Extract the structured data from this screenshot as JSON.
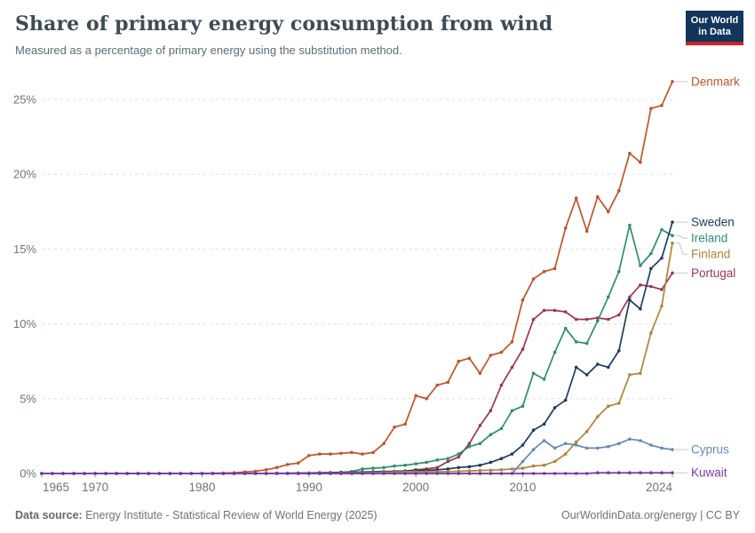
{
  "header": {
    "title": "Share of primary energy consumption from wind",
    "subtitle": "Measured as a percentage of primary energy using the substitution method."
  },
  "logo": {
    "line1": "Our World",
    "line2": "in Data",
    "bg_color": "#12355B",
    "accent_color": "#CA2428"
  },
  "footer": {
    "source_label": "Data source:",
    "source_text": " Energy Institute - Statistical Review of World Energy (2025)",
    "credit": "OurWorldinData.org/energy | CC BY"
  },
  "chart_data": {
    "type": "line",
    "title": "Share of primary energy consumption from wind",
    "xlabel": "",
    "ylabel": "",
    "unit": "%",
    "grid": "horizontal dashed",
    "legend_position": "right edge labels",
    "ylim": [
      0,
      26.5
    ],
    "yticks": [
      0,
      5,
      10,
      15,
      20,
      25
    ],
    "ytick_labels": [
      "0%",
      "5%",
      "10%",
      "15%",
      "20%",
      "25%"
    ],
    "xticks": [
      1965,
      1970,
      1980,
      1990,
      2000,
      2010,
      2024
    ],
    "x": [
      1965,
      1966,
      1967,
      1968,
      1969,
      1970,
      1971,
      1972,
      1973,
      1974,
      1975,
      1976,
      1977,
      1978,
      1979,
      1980,
      1981,
      1982,
      1983,
      1984,
      1985,
      1986,
      1987,
      1988,
      1989,
      1990,
      1991,
      1992,
      1993,
      1994,
      1995,
      1996,
      1997,
      1998,
      1999,
      2000,
      2001,
      2002,
      2003,
      2004,
      2005,
      2006,
      2007,
      2008,
      2009,
      2010,
      2011,
      2012,
      2013,
      2014,
      2015,
      2016,
      2017,
      2018,
      2019,
      2020,
      2021,
      2022,
      2023,
      2024
    ],
    "series": [
      {
        "name": "Denmark",
        "color": "#C0532B",
        "values": [
          0,
          0,
          0,
          0,
          0,
          0,
          0,
          0,
          0,
          0,
          0,
          0,
          0,
          0,
          0,
          0.01,
          0.02,
          0.03,
          0.05,
          0.1,
          0.15,
          0.25,
          0.4,
          0.6,
          0.7,
          1.2,
          1.3,
          1.3,
          1.35,
          1.4,
          1.3,
          1.4,
          2.0,
          3.1,
          3.3,
          5.2,
          5.0,
          5.9,
          6.1,
          7.5,
          7.7,
          6.7,
          7.9,
          8.1,
          8.8,
          11.6,
          13.0,
          13.5,
          13.7,
          16.4,
          18.4,
          16.2,
          18.5,
          17.5,
          18.9,
          21.4,
          20.8,
          24.4,
          24.6,
          26.2
        ]
      },
      {
        "name": "Sweden",
        "color": "#1D3D63",
        "values": [
          0,
          0,
          0,
          0,
          0,
          0,
          0,
          0,
          0,
          0,
          0,
          0,
          0,
          0,
          0,
          0,
          0,
          0,
          0,
          0,
          0.01,
          0.01,
          0.02,
          0.02,
          0.03,
          0.03,
          0.05,
          0.06,
          0.08,
          0.09,
          0.1,
          0.12,
          0.13,
          0.15,
          0.17,
          0.2,
          0.2,
          0.25,
          0.3,
          0.4,
          0.45,
          0.55,
          0.75,
          1.0,
          1.3,
          1.9,
          2.9,
          3.3,
          4.4,
          4.9,
          7.1,
          6.6,
          7.3,
          7.1,
          8.2,
          11.6,
          11.0,
          13.7,
          14.4,
          16.8
        ]
      },
      {
        "name": "Ireland",
        "color": "#2F8E6E",
        "values": [
          0,
          0,
          0,
          0,
          0,
          0,
          0,
          0,
          0,
          0,
          0,
          0,
          0,
          0,
          0,
          0,
          0,
          0,
          0,
          0,
          0,
          0,
          0,
          0,
          0,
          0,
          0,
          0.03,
          0.08,
          0.13,
          0.3,
          0.35,
          0.4,
          0.5,
          0.55,
          0.65,
          0.75,
          0.9,
          1.0,
          1.3,
          1.8,
          2.0,
          2.6,
          3.0,
          4.2,
          4.5,
          6.7,
          6.3,
          8.1,
          9.7,
          8.8,
          8.7,
          10.2,
          11.8,
          13.5,
          16.6,
          13.9,
          14.7,
          16.3,
          15.9
        ]
      },
      {
        "name": "Finland",
        "color": "#B08439",
        "values": [
          0,
          0,
          0,
          0,
          0,
          0,
          0,
          0,
          0,
          0,
          0,
          0,
          0,
          0,
          0,
          0,
          0,
          0,
          0,
          0,
          0,
          0,
          0,
          0,
          0,
          0,
          0,
          0.02,
          0.03,
          0.04,
          0.05,
          0.06,
          0.08,
          0.1,
          0.12,
          0.12,
          0.12,
          0.12,
          0.13,
          0.15,
          0.17,
          0.2,
          0.22,
          0.25,
          0.3,
          0.35,
          0.5,
          0.55,
          0.8,
          1.3,
          2.1,
          2.8,
          3.8,
          4.5,
          4.7,
          6.6,
          6.7,
          9.4,
          11.2,
          15.4
        ]
      },
      {
        "name": "Portugal",
        "color": "#9E3356",
        "values": [
          0,
          0,
          0,
          0,
          0,
          0,
          0,
          0,
          0,
          0,
          0,
          0,
          0,
          0,
          0,
          0,
          0,
          0,
          0,
          0,
          0,
          0,
          0,
          0,
          0,
          0,
          0,
          0,
          0,
          0,
          0,
          0.04,
          0.06,
          0.1,
          0.15,
          0.25,
          0.3,
          0.4,
          0.8,
          1.1,
          2.0,
          3.2,
          4.2,
          5.9,
          7.1,
          8.3,
          10.3,
          10.9,
          10.9,
          10.8,
          10.3,
          10.3,
          10.4,
          10.3,
          10.6,
          11.8,
          12.6,
          12.5,
          12.3,
          13.4
        ]
      },
      {
        "name": "Cyprus",
        "color": "#6787B8",
        "values": [
          0,
          0,
          0,
          0,
          0,
          0,
          0,
          0,
          0,
          0,
          0,
          0,
          0,
          0,
          0,
          0,
          0,
          0,
          0,
          0,
          0,
          0,
          0,
          0,
          0,
          0,
          0,
          0,
          0,
          0,
          0,
          0,
          0,
          0,
          0,
          0,
          0,
          0,
          0,
          0,
          0,
          0,
          0,
          0,
          0,
          0.8,
          1.6,
          2.2,
          1.7,
          2.0,
          1.9,
          1.7,
          1.7,
          1.8,
          2.0,
          2.3,
          2.2,
          1.9,
          1.7,
          1.6
        ]
      },
      {
        "name": "Kuwait",
        "color": "#7A38A6",
        "values": [
          0,
          0,
          0,
          0,
          0,
          0,
          0,
          0,
          0,
          0,
          0,
          0,
          0,
          0,
          0,
          0,
          0,
          0,
          0,
          0,
          0,
          0,
          0,
          0,
          0,
          0,
          0,
          0,
          0,
          0,
          0,
          0,
          0,
          0,
          0,
          0,
          0,
          0,
          0,
          0,
          0,
          0,
          0,
          0,
          0,
          0,
          0,
          0,
          0,
          0,
          0,
          0,
          0.05,
          0.05,
          0.05,
          0.05,
          0.05,
          0.05,
          0.05,
          0.05
        ]
      }
    ]
  }
}
